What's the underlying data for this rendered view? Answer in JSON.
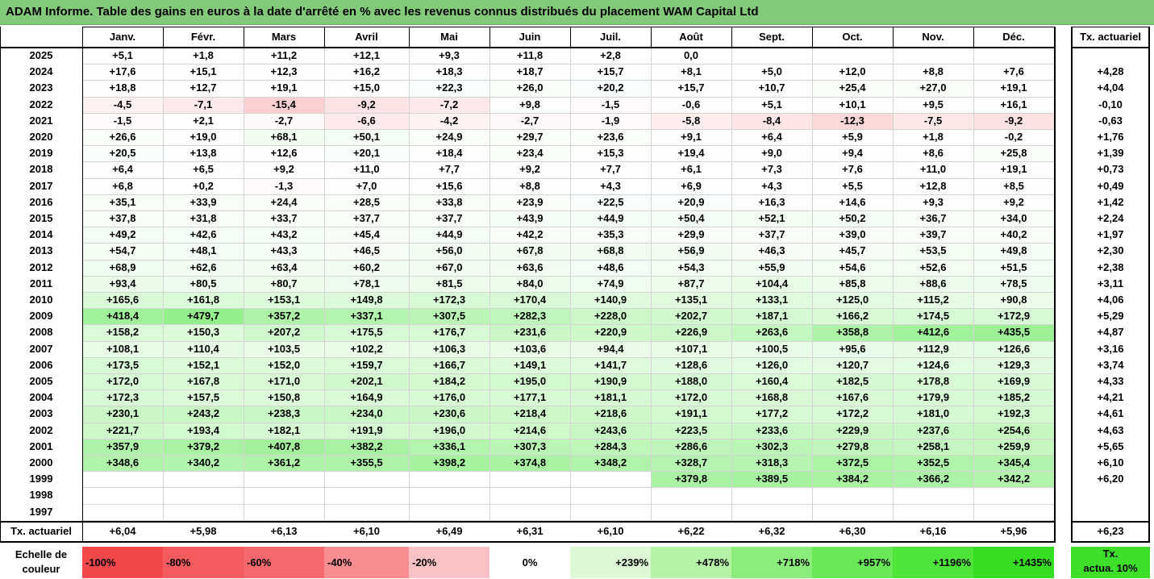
{
  "title": "ADAM Informe. Table des gains en euros à la date d'arrêté en % avec les revenus connus distribués du placement WAM Capital Ltd",
  "months": [
    "Janv.",
    "Févr.",
    "Mars",
    "Avril",
    "Mai",
    "Juin",
    "Juil.",
    "Août",
    "Sept.",
    "Oct.",
    "Nov.",
    "Déc."
  ],
  "rate_header": "Tx. actuariel",
  "rows": [
    {
      "year": "2025",
      "values": [
        "+5,1",
        "+1,8",
        "+11,2",
        "+12,1",
        "+9,3",
        "+11,8",
        "+2,8",
        "0,0",
        "",
        "",
        "",
        ""
      ],
      "rate": ""
    },
    {
      "year": "2024",
      "values": [
        "+17,6",
        "+15,1",
        "+12,3",
        "+16,2",
        "+18,3",
        "+18,7",
        "+15,7",
        "+8,1",
        "+5,0",
        "+12,0",
        "+8,8",
        "+7,6"
      ],
      "rate": "+4,28"
    },
    {
      "year": "2023",
      "values": [
        "+18,8",
        "+12,7",
        "+19,1",
        "+15,0",
        "+22,3",
        "+26,0",
        "+20,2",
        "+15,7",
        "+10,7",
        "+25,4",
        "+27,0",
        "+19,1"
      ],
      "rate": "+4,04"
    },
    {
      "year": "2022",
      "values": [
        "-4,5",
        "-7,1",
        "-15,4",
        "-9,2",
        "-7,2",
        "+9,8",
        "-1,5",
        "-0,6",
        "+5,1",
        "+10,1",
        "+9,5",
        "+16,1"
      ],
      "rate": "-0,10"
    },
    {
      "year": "2021",
      "values": [
        "-1,5",
        "+2,1",
        "-2,7",
        "-6,6",
        "-4,2",
        "-2,7",
        "-1,9",
        "-5,8",
        "-8,4",
        "-12,3",
        "-7,5",
        "-9,2"
      ],
      "rate": "-0,63"
    },
    {
      "year": "2020",
      "values": [
        "+26,6",
        "+19,0",
        "+68,1",
        "+50,1",
        "+24,9",
        "+29,7",
        "+23,6",
        "+9,1",
        "+6,4",
        "+5,9",
        "+1,8",
        "-0,2"
      ],
      "rate": "+1,76"
    },
    {
      "year": "2019",
      "values": [
        "+20,5",
        "+13,8",
        "+12,6",
        "+20,1",
        "+18,4",
        "+23,4",
        "+15,3",
        "+19,4",
        "+9,0",
        "+9,4",
        "+8,6",
        "+25,8"
      ],
      "rate": "+1,39"
    },
    {
      "year": "2018",
      "values": [
        "+6,4",
        "+6,5",
        "+9,2",
        "+11,0",
        "+7,7",
        "+9,2",
        "+7,7",
        "+6,1",
        "+7,3",
        "+7,6",
        "+11,0",
        "+19,1"
      ],
      "rate": "+0,73"
    },
    {
      "year": "2017",
      "values": [
        "+6,8",
        "+0,2",
        "-1,3",
        "+7,0",
        "+15,6",
        "+8,8",
        "+4,3",
        "+6,9",
        "+4,3",
        "+5,5",
        "+12,8",
        "+8,5"
      ],
      "rate": "+0,49"
    },
    {
      "year": "2016",
      "values": [
        "+35,1",
        "+33,9",
        "+24,4",
        "+28,5",
        "+33,8",
        "+23,9",
        "+22,5",
        "+20,9",
        "+16,3",
        "+14,6",
        "+9,3",
        "+9,2"
      ],
      "rate": "+1,42"
    },
    {
      "year": "2015",
      "values": [
        "+37,8",
        "+31,8",
        "+33,7",
        "+37,7",
        "+37,7",
        "+43,9",
        "+44,9",
        "+50,4",
        "+52,1",
        "+50,2",
        "+36,7",
        "+34,0"
      ],
      "rate": "+2,24"
    },
    {
      "year": "2014",
      "values": [
        "+49,2",
        "+42,6",
        "+43,2",
        "+45,4",
        "+44,9",
        "+42,2",
        "+35,3",
        "+29,9",
        "+37,7",
        "+39,0",
        "+39,7",
        "+40,2"
      ],
      "rate": "+1,97"
    },
    {
      "year": "2013",
      "values": [
        "+54,7",
        "+48,1",
        "+43,3",
        "+46,5",
        "+56,0",
        "+67,8",
        "+68,8",
        "+56,9",
        "+46,3",
        "+45,7",
        "+53,5",
        "+49,8"
      ],
      "rate": "+2,30"
    },
    {
      "year": "2012",
      "values": [
        "+68,9",
        "+62,6",
        "+63,4",
        "+60,2",
        "+67,0",
        "+63,6",
        "+48,6",
        "+54,3",
        "+55,9",
        "+54,6",
        "+52,6",
        "+51,5"
      ],
      "rate": "+2,38"
    },
    {
      "year": "2011",
      "values": [
        "+93,4",
        "+80,5",
        "+80,7",
        "+78,1",
        "+81,5",
        "+84,0",
        "+74,9",
        "+87,7",
        "+104,4",
        "+85,8",
        "+88,6",
        "+78,5"
      ],
      "rate": "+3,11"
    },
    {
      "year": "2010",
      "values": [
        "+165,6",
        "+161,8",
        "+153,1",
        "+149,8",
        "+172,3",
        "+170,4",
        "+140,9",
        "+135,1",
        "+133,1",
        "+125,0",
        "+115,2",
        "+90,8"
      ],
      "rate": "+4,06"
    },
    {
      "year": "2009",
      "values": [
        "+418,4",
        "+479,7",
        "+357,2",
        "+337,1",
        "+307,5",
        "+282,3",
        "+228,0",
        "+202,7",
        "+187,1",
        "+166,2",
        "+174,5",
        "+172,9"
      ],
      "rate": "+5,29"
    },
    {
      "year": "2008",
      "values": [
        "+158,2",
        "+150,3",
        "+207,2",
        "+175,5",
        "+176,7",
        "+231,6",
        "+220,9",
        "+226,9",
        "+263,6",
        "+358,8",
        "+412,6",
        "+435,5"
      ],
      "rate": "+4,87"
    },
    {
      "year": "2007",
      "values": [
        "+108,1",
        "+110,4",
        "+103,5",
        "+102,2",
        "+106,3",
        "+103,6",
        "+94,4",
        "+107,1",
        "+100,5",
        "+95,6",
        "+112,9",
        "+126,6"
      ],
      "rate": "+3,16"
    },
    {
      "year": "2006",
      "values": [
        "+173,5",
        "+152,1",
        "+152,0",
        "+159,7",
        "+166,7",
        "+149,1",
        "+141,7",
        "+128,6",
        "+126,0",
        "+120,7",
        "+124,6",
        "+129,3"
      ],
      "rate": "+3,74"
    },
    {
      "year": "2005",
      "values": [
        "+172,0",
        "+167,8",
        "+171,0",
        "+202,1",
        "+184,2",
        "+195,0",
        "+190,9",
        "+188,0",
        "+160,4",
        "+182,5",
        "+178,8",
        "+169,9"
      ],
      "rate": "+4,33"
    },
    {
      "year": "2004",
      "values": [
        "+172,3",
        "+157,5",
        "+150,8",
        "+164,9",
        "+176,0",
        "+177,1",
        "+181,1",
        "+172,0",
        "+168,8",
        "+167,6",
        "+179,9",
        "+185,2"
      ],
      "rate": "+4,21"
    },
    {
      "year": "2003",
      "values": [
        "+230,1",
        "+243,2",
        "+238,3",
        "+234,0",
        "+230,6",
        "+218,4",
        "+218,6",
        "+191,1",
        "+177,2",
        "+172,2",
        "+181,0",
        "+192,3"
      ],
      "rate": "+4,61"
    },
    {
      "year": "2002",
      "values": [
        "+221,7",
        "+193,4",
        "+182,1",
        "+191,9",
        "+196,0",
        "+214,6",
        "+243,6",
        "+223,5",
        "+233,6",
        "+229,9",
        "+237,6",
        "+254,6"
      ],
      "rate": "+4,63"
    },
    {
      "year": "2001",
      "values": [
        "+357,9",
        "+379,2",
        "+407,8",
        "+382,2",
        "+336,1",
        "+307,3",
        "+284,3",
        "+286,6",
        "+302,3",
        "+279,8",
        "+258,1",
        "+259,9"
      ],
      "rate": "+5,65"
    },
    {
      "year": "2000",
      "values": [
        "+348,6",
        "+340,2",
        "+361,2",
        "+355,5",
        "+398,2",
        "+374,8",
        "+348,2",
        "+328,7",
        "+318,3",
        "+372,5",
        "+352,5",
        "+345,4"
      ],
      "rate": "+6,10"
    },
    {
      "year": "1999",
      "values": [
        "",
        "",
        "",
        "",
        "",
        "",
        "",
        "+379,8",
        "+389,5",
        "+384,2",
        "+366,2",
        "+342,2"
      ],
      "rate": "+6,20"
    },
    {
      "year": "1998",
      "values": [
        "",
        "",
        "",
        "",
        "",
        "",
        "",
        "",
        "",
        "",
        "",
        ""
      ],
      "rate": ""
    },
    {
      "year": "1997",
      "values": [
        "",
        "",
        "",
        "",
        "",
        "",
        "",
        "",
        "",
        "",
        "",
        ""
      ],
      "rate": ""
    }
  ],
  "footer": {
    "label": "Tx. actuariel",
    "values": [
      "+6,04",
      "+5,98",
      "+6,13",
      "+6,10",
      "+6,49",
      "+6,31",
      "+6,10",
      "+6,22",
      "+6,32",
      "+6,30",
      "+6,16",
      "+5,96"
    ],
    "rate": "+6,23"
  },
  "scale": {
    "label_line1": "Echelle de",
    "label_line2": "couleur",
    "items": [
      {
        "label": "-100%",
        "color": "#f2474b"
      },
      {
        "label": "-80%",
        "color": "#f35b5e"
      },
      {
        "label": "-60%",
        "color": "#f5696d"
      },
      {
        "label": "-40%",
        "color": "#f88e92"
      },
      {
        "label": "-20%",
        "color": "#fbc2c5"
      },
      {
        "label": "0%",
        "color": "#ffffff"
      },
      {
        "label": "+239%",
        "color": "#dcf8d5"
      },
      {
        "label": "+478%",
        "color": "#b4f3a8"
      },
      {
        "label": "+718%",
        "color": "#8bee7c"
      },
      {
        "label": "+957%",
        "color": "#6ae958"
      },
      {
        "label": "+1196%",
        "color": "#4ee43a"
      },
      {
        "label": "+1435%",
        "color": "#36de21"
      }
    ],
    "rate_line1": "Tx.",
    "rate_line2": "actua. 10%",
    "rate_color": "#3ddf2a"
  }
}
